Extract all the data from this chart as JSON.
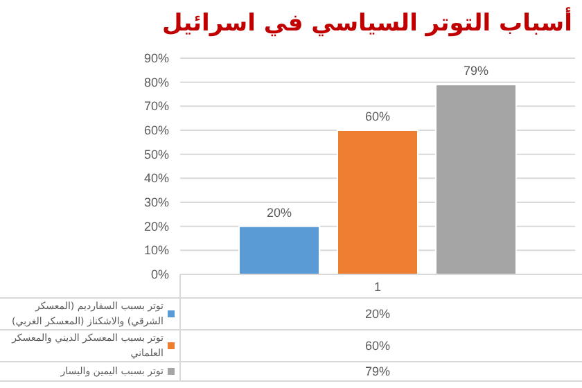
{
  "chart_data": {
    "type": "bar",
    "title": "أسباب التوتر السياسي في اسرائيل",
    "categories": [
      "1"
    ],
    "series": [
      {
        "name": "توتر بسبب السفارديم (المعسكر الشرقي) والاشكناز (المعسكر الغربي)",
        "color": "#5b9bd5",
        "values": [
          20
        ],
        "value_labels": [
          "20%"
        ]
      },
      {
        "name": "توتر بسبب المعسكر الديني والمعسكر العلماني",
        "color": "#ed7d31",
        "values": [
          60
        ],
        "value_labels": [
          "60%"
        ]
      },
      {
        "name": "توتر بسبب اليمين واليسار",
        "color": "#a5a5a5",
        "values": [
          79
        ],
        "value_labels": [
          "79%"
        ]
      }
    ],
    "ylim": [
      0,
      90
    ],
    "yticks": [
      {
        "value": 0,
        "label": "0%"
      },
      {
        "value": 10,
        "label": "10%"
      },
      {
        "value": 20,
        "label": "20%"
      },
      {
        "value": 30,
        "label": "30%"
      },
      {
        "value": 40,
        "label": "40%"
      },
      {
        "value": 50,
        "label": "50%"
      },
      {
        "value": 60,
        "label": "60%"
      },
      {
        "value": 70,
        "label": "70%"
      },
      {
        "value": 80,
        "label": "80%"
      },
      {
        "value": 90,
        "label": "90%"
      }
    ],
    "grid": "y",
    "legend": "bottom left"
  }
}
